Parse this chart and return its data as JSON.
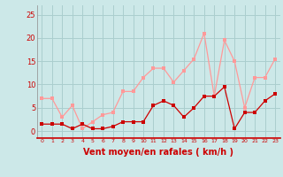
{
  "x": [
    0,
    1,
    2,
    3,
    4,
    5,
    6,
    7,
    8,
    9,
    10,
    11,
    12,
    13,
    14,
    15,
    16,
    17,
    18,
    19,
    20,
    21,
    22,
    23
  ],
  "vent_moyen": [
    1.5,
    1.5,
    1.5,
    0.5,
    1.5,
    0.5,
    0.5,
    1.0,
    2.0,
    2.0,
    2.0,
    5.5,
    6.5,
    5.5,
    3.0,
    5.0,
    7.5,
    7.5,
    9.5,
    0.5,
    4.0,
    4.0,
    6.5,
    8.0
  ],
  "rafales": [
    7.0,
    7.0,
    3.0,
    5.5,
    0.5,
    2.0,
    3.5,
    4.0,
    8.5,
    8.5,
    11.5,
    13.5,
    13.5,
    10.5,
    13.0,
    15.5,
    21.0,
    7.5,
    19.5,
    15.0,
    5.0,
    11.5,
    11.5,
    15.5
  ],
  "bg_color": "#cce8e8",
  "grid_color": "#aacece",
  "line_moyen_color": "#cc0000",
  "line_rafales_color": "#ff9999",
  "marker_size": 2.5,
  "xlabel": "Vent moyen/en rafales ( km/h )",
  "xlabel_color": "#cc0000",
  "xlabel_fontsize": 7,
  "tick_color": "#cc0000",
  "yticks": [
    0,
    5,
    10,
    15,
    20,
    25
  ],
  "ylim": [
    -1.5,
    27
  ],
  "xlim": [
    -0.5,
    23.5
  ]
}
